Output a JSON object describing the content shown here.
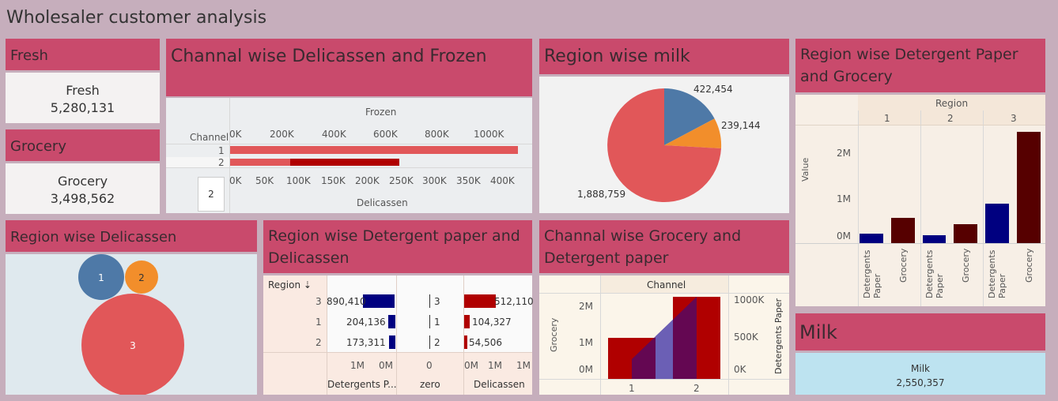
{
  "title": "Wholesaler customer analysis",
  "fresh": {
    "header": "Fresh",
    "label": "Fresh",
    "value": "5,280,131"
  },
  "grocery": {
    "header": "Grocery",
    "label": "Grocery",
    "value": "3,498,562"
  },
  "milk": {
    "header": "Milk",
    "label": "Milk",
    "value": "2,550,357"
  },
  "channel_delicassen_frozen": {
    "header": "Channal wise Delicassen and Frozen",
    "top_axis_title": "Frozen",
    "bottom_axis_title": "Delicassen",
    "row_title": "Channel",
    "rows": [
      "1",
      "2"
    ],
    "top_ticks": [
      "0K",
      "200K",
      "400K",
      "600K",
      "800K",
      "1000K"
    ],
    "bottom_ticks": [
      "0K",
      "50K",
      "100K",
      "150K",
      "200K",
      "250K",
      "300K",
      "350K",
      "400K"
    ],
    "page_control": "2"
  },
  "region_milk": {
    "header": "Region wise milk",
    "labels": [
      "422,454",
      "239,144",
      "1,888,759"
    ]
  },
  "region_detergent_grocery": {
    "header_line1": "Region wise Detergent Paper",
    "header_line2": "and Grocery",
    "col_title": "Region",
    "regions": [
      "1",
      "2",
      "3"
    ],
    "y_axis_title": "Value",
    "y_ticks": [
      "2M",
      "1M",
      "0M"
    ],
    "x_labels": [
      "Detergents Paper",
      "Grocery"
    ]
  },
  "region_delicassen": {
    "header": "Region wise Delicassen",
    "bubbles": [
      "1",
      "2",
      "3"
    ]
  },
  "region_detergent_delicassen": {
    "header_line1": "Region wise Detergent paper and",
    "header_line2": "Delicassen",
    "region_header": "Region",
    "rows": [
      {
        "region": "3",
        "detergent": "890,410",
        "zero": "3",
        "delicassen": "512,110"
      },
      {
        "region": "1",
        "detergent": "204,136",
        "zero": "1",
        "delicassen": "104,327"
      },
      {
        "region": "2",
        "detergent": "173,311",
        "zero": "2",
        "delicassen": "54,506"
      }
    ],
    "det_ticks": [
      "1M",
      "0M"
    ],
    "zero_tick": "0",
    "deli_ticks": [
      "0M",
      "1M",
      "1M"
    ],
    "col_labels": [
      "Detergents P...",
      "zero",
      "Delicassen"
    ]
  },
  "channel_grocery_detergent": {
    "header_line1": "Channal wise Grocery and",
    "header_line2": "Detergent paper",
    "top_title": "Channel",
    "left_axis_title": "Grocery",
    "right_axis_title": "Detergents Paper",
    "left_ticks": [
      "2M",
      "1M",
      "0M"
    ],
    "right_ticks": [
      "1000K",
      "500K",
      "0K"
    ],
    "x_labels": [
      "1",
      "2"
    ]
  },
  "colors": {
    "background": "#c6aebc",
    "header": "#c94a6c",
    "frozen_bar": "#e15759",
    "delicassen_bar": "#b00000",
    "pie_blue": "#4e79a7",
    "pie_orange": "#f28e2b",
    "pie_red": "#e15759",
    "navy": "#000080",
    "maroon": "#560000",
    "milk_kpi_bg": "#bde3f0"
  }
}
